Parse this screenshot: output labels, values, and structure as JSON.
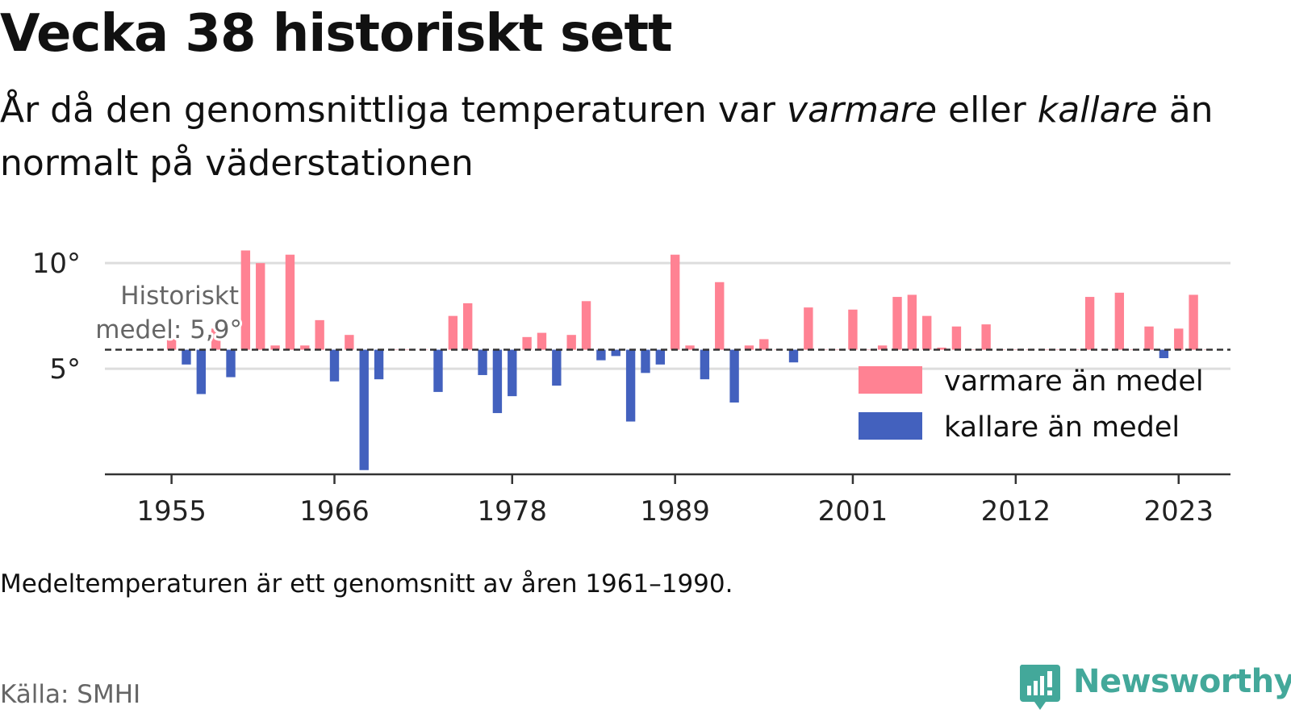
{
  "header": {
    "title": "Vecka 38 historiskt sett",
    "subtitle_part1": "År då den genomsnittliga temperaturen var ",
    "subtitle_warm": "varmare",
    "subtitle_part2": " eller ",
    "subtitle_cold": "kallare",
    "subtitle_part3": " än normalt på väderstationen"
  },
  "footer": {
    "note": "Medeltemperaturen är ett genomsnitt av åren 1961–1990.",
    "source": "Källa: SMHI",
    "brand": "Newsworthy"
  },
  "colors": {
    "warm": "#ff8293",
    "cold": "#4361be",
    "grid": "#dddddd",
    "axis": "#333333",
    "text": "#111111",
    "muted": "#666666",
    "brand": "#43a89a"
  },
  "chart_data": {
    "type": "bar",
    "y_unit": "°",
    "ylim": [
      0.0,
      11.0
    ],
    "xlim": [
      1950.5,
      2026.5
    ],
    "x_ticks": [
      1955,
      1966,
      1978,
      1989,
      2001,
      2012,
      2023
    ],
    "y_ticks": [
      5,
      10
    ],
    "grid": true,
    "legend_position": "right",
    "reference": {
      "label_line1": "Historiskt",
      "label_line2": "medel: 5,9°",
      "value": 5.9
    },
    "series": [
      {
        "name": "varmare än medel",
        "color": "#ff8293"
      },
      {
        "name": "kallare än medel",
        "color": "#4361be"
      }
    ],
    "years": [
      1955,
      1956,
      1957,
      1958,
      1959,
      1960,
      1961,
      1962,
      1963,
      1964,
      1965,
      1966,
      1967,
      1968,
      1969,
      1970,
      1971,
      1972,
      1973,
      1974,
      1975,
      1976,
      1977,
      1978,
      1979,
      1980,
      1981,
      1982,
      1983,
      1984,
      1985,
      1986,
      1987,
      1988,
      1989,
      1990,
      1991,
      1992,
      1993,
      1994,
      1995,
      1996,
      1997,
      1998,
      1999,
      2000,
      2001,
      2002,
      2003,
      2004,
      2005,
      2006,
      2007,
      2008,
      2009,
      2010,
      2011,
      2012,
      2013,
      2014,
      2015,
      2016,
      2017,
      2018,
      2019,
      2020,
      2021,
      2022,
      2023,
      2024,
      2025
    ],
    "values": [
      6.4,
      5.2,
      3.8,
      6.9,
      4.6,
      10.6,
      10.0,
      6.1,
      10.4,
      6.1,
      7.3,
      4.4,
      6.6,
      0.2,
      4.5,
      5.9,
      5.9,
      5.9,
      3.9,
      7.5,
      8.1,
      4.7,
      2.9,
      3.7,
      6.5,
      6.7,
      4.2,
      6.6,
      8.2,
      5.4,
      5.6,
      2.5,
      4.8,
      5.2,
      10.4,
      6.1,
      4.5,
      9.1,
      3.4,
      6.1,
      6.4,
      5.9,
      5.3,
      7.9,
      5.9,
      5.9,
      7.8,
      5.9,
      6.1,
      8.4,
      8.5,
      7.5,
      6.0,
      7.0,
      5.9,
      7.1,
      5.9,
      5.9,
      5.9,
      5.9,
      5.9,
      5.9,
      8.4,
      5.9,
      8.6,
      5.9,
      7.0,
      5.5,
      6.9,
      8.5,
      5.9
    ]
  }
}
